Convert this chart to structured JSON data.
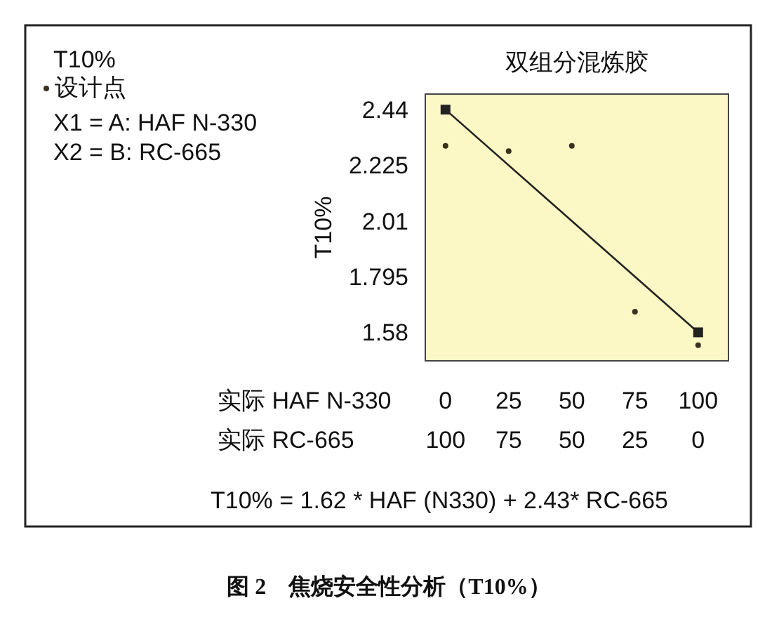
{
  "chart_data": {
    "type": "scatter",
    "title": "双组分混炼胶",
    "xlabel": "实际 HAF N-330",
    "x2label": "实际 RC-665",
    "ylabel": "T10%",
    "legend_title": "T10%",
    "legend": "top left",
    "x": [
      0,
      25,
      50,
      75,
      100
    ],
    "xlim": [
      -8,
      112
    ],
    "xticks": [
      0,
      25,
      50,
      75,
      100
    ],
    "x2lim": [
      108,
      -12
    ],
    "x2ticks": [
      100,
      75,
      50,
      25,
      0
    ],
    "ylim": [
      1.47,
      2.5
    ],
    "yticks": [
      2.44,
      2.225,
      2.01,
      1.795,
      1.58
    ],
    "series": [
      {
        "name": "设计点",
        "marker": "circle",
        "color": "#3b2f1e",
        "values": [
          2.3,
          2.28,
          2.3,
          1.66,
          1.53
        ]
      },
      {
        "type": "line",
        "marker": "square",
        "color": "#222222",
        "x": [
          0,
          100
        ],
        "values": [
          2.44,
          1.58
        ]
      }
    ],
    "annotations": [
      "X1 = A: HAF N-330",
      "X2 = B: RC-665",
      "T10% = 1.62 * HAF (N330) + 2.43* RC-665",
      "图 2　焦烧安全性分析（T10%）"
    ]
  }
}
